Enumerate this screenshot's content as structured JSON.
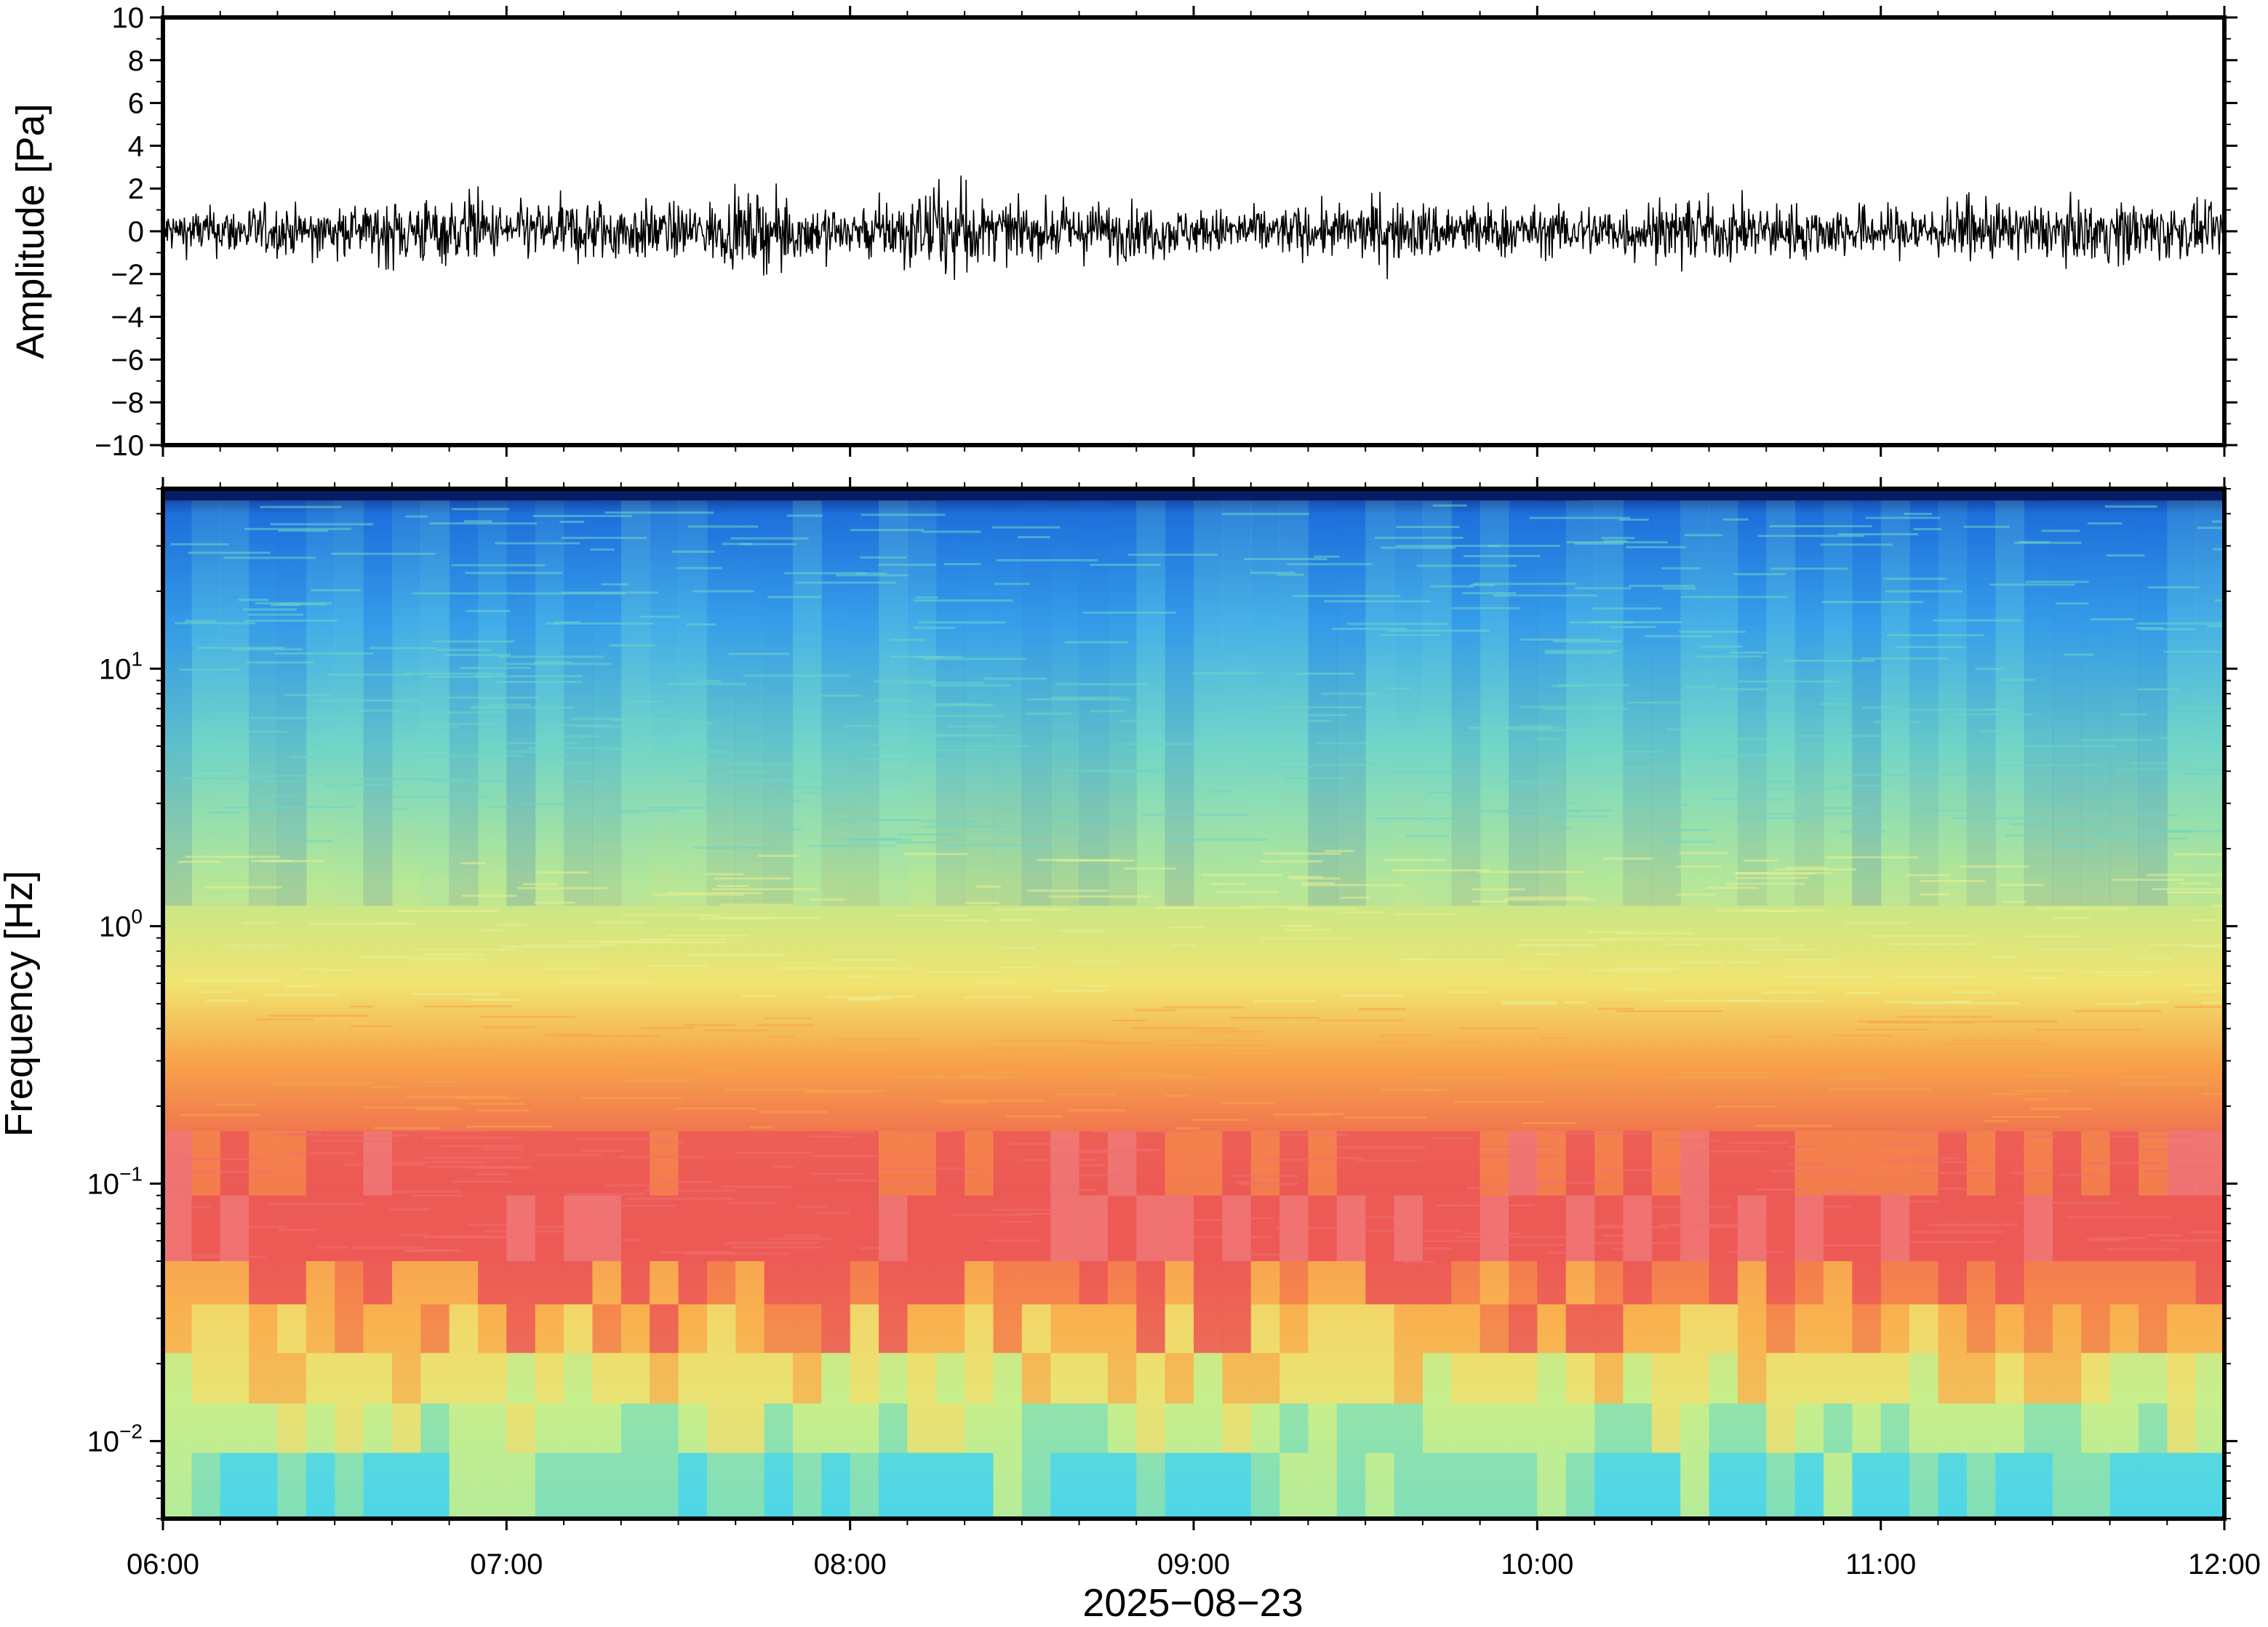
{
  "chart_data": [
    {
      "type": "line",
      "title": "",
      "xlabel": "",
      "ylabel": "Amplitude [Pa]",
      "ylim": [
        -10,
        10
      ],
      "y_ticks": [
        10,
        8,
        6,
        4,
        2,
        0,
        -2,
        -4,
        -6,
        -8,
        -10
      ],
      "y_tick_labels": [
        "10",
        "8",
        "6",
        "4",
        "2",
        "0",
        "−2",
        "−4",
        "−6",
        "−8",
        "−10"
      ],
      "x_range": [
        "06:00",
        "12:00"
      ],
      "grid": false,
      "series": [
        {
          "description_values": "pressure trace, envelope in Pa per ~15 min",
          "x": [
            "06:00",
            "06:15",
            "06:30",
            "06:45",
            "07:00",
            "07:15",
            "07:30",
            "07:45",
            "08:00",
            "08:15",
            "08:30",
            "08:45",
            "09:00",
            "09:15",
            "09:30",
            "09:45",
            "10:00",
            "10:15",
            "10:30",
            "10:45",
            "11:00",
            "11:15",
            "11:30",
            "11:45",
            "12:00"
          ],
          "y_max": [
            1.4,
            1.8,
            1.6,
            2.6,
            1.8,
            2.0,
            1.8,
            2.8,
            1.8,
            3.0,
            1.8,
            1.6,
            1.5,
            1.6,
            1.8,
            1.9,
            1.6,
            2.1,
            1.7,
            1.8,
            1.8,
            2.0,
            1.8,
            2.0,
            1.4
          ],
          "y_min": [
            -1.5,
            -1.8,
            -1.6,
            -2.3,
            -1.9,
            -2.6,
            -1.9,
            -2.2,
            -1.9,
            -2.4,
            -1.8,
            -2.5,
            -1.6,
            -1.7,
            -2.0,
            -2.3,
            -1.7,
            -1.8,
            -2.6,
            -1.9,
            -1.8,
            -2.0,
            -1.9,
            -2.6,
            -1.6
          ]
        }
      ]
    },
    {
      "type": "heatmap",
      "title": "",
      "xlabel": "2025−08−23",
      "ylabel": "Frequency [Hz]",
      "y_scale": "log",
      "ylim": [
        0.005,
        50
      ],
      "y_tick_labels": [
        {
          "base": "10",
          "exp": "1",
          "value": 10
        },
        {
          "base": "10",
          "exp": "0",
          "value": 1
        },
        {
          "base": "10",
          "exp": "−1",
          "value": 0.1
        },
        {
          "base": "10",
          "exp": "−2",
          "value": 0.01
        }
      ],
      "x_tick_labels": [
        "06:00",
        "07:00",
        "08:00",
        "09:00",
        "10:00",
        "11:00",
        "12:00"
      ],
      "colormap": "rainbow (blue = low power, red = high power)",
      "colorbar": false,
      "color_profile_by_frequency": [
        {
          "freq_hz": 50,
          "color": "#0b1e6e"
        },
        {
          "freq_hz": 40,
          "color": "#1e70dc"
        },
        {
          "freq_hz": 15,
          "color": "#3aa6ec"
        },
        {
          "freq_hz": 5,
          "color": "#6fd4c6"
        },
        {
          "freq_hz": 1.5,
          "color": "#bfe88e"
        },
        {
          "freq_hz": 0.6,
          "color": "#f0e470"
        },
        {
          "freq_hz": 0.3,
          "color": "#f7a44a"
        },
        {
          "freq_hz": 0.1,
          "color": "#ec5552"
        },
        {
          "freq_hz": 0.05,
          "color": "#ee5a56"
        },
        {
          "freq_hz": 0.03,
          "color": "#f7a84c"
        },
        {
          "freq_hz": 0.015,
          "color": "#c6ee8a"
        },
        {
          "freq_hz": 0.005,
          "color": "#52d7e4"
        }
      ]
    }
  ]
}
